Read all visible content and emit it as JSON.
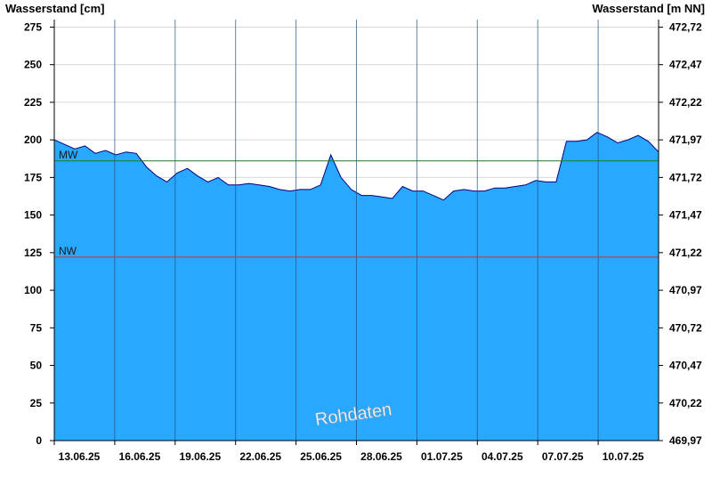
{
  "chart_data": {
    "type": "area",
    "title": "",
    "y_left_label": "Wasserstand [cm]",
    "y_right_label": "Wasserstand [m NN]",
    "y_left_ticks": [
      0,
      25,
      50,
      75,
      100,
      125,
      150,
      175,
      200,
      225,
      250,
      275
    ],
    "y_right_ticks": [
      "469,97",
      "470,22",
      "470,47",
      "470,72",
      "470,97",
      "471,22",
      "471,47",
      "471,72",
      "471,97",
      "472,22",
      "472,47",
      "472,72"
    ],
    "ylim": [
      0,
      280
    ],
    "x_tick_labels": [
      "13.06.25",
      "16.06.25",
      "19.06.25",
      "22.06.25",
      "25.06.25",
      "28.06.25",
      "01.07.25",
      "04.07.25",
      "07.07.25",
      "10.07.25"
    ],
    "x_days": [
      [
        "13.06.25",
        200
      ],
      [
        "13.06.25",
        197
      ],
      [
        "14.06.25",
        194
      ],
      [
        "14.06.25",
        196
      ],
      [
        "15.06.25",
        191
      ],
      [
        "15.06.25",
        193
      ],
      [
        "16.06.25",
        190
      ],
      [
        "16.06.25",
        192
      ],
      [
        "17.06.25",
        191
      ],
      [
        "17.06.25",
        182
      ],
      [
        "18.06.25",
        176
      ],
      [
        "18.06.25",
        172
      ],
      [
        "19.06.25",
        178
      ],
      [
        "19.06.25",
        181
      ],
      [
        "20.06.25",
        176
      ],
      [
        "20.06.25",
        172
      ],
      [
        "21.06.25",
        175
      ],
      [
        "21.06.25",
        170
      ],
      [
        "22.06.25",
        170
      ],
      [
        "22.06.25",
        171
      ],
      [
        "23.06.25",
        170
      ],
      [
        "23.06.25",
        169
      ],
      [
        "24.06.25",
        167
      ],
      [
        "24.06.25",
        166
      ],
      [
        "25.06.25",
        167
      ],
      [
        "25.06.25",
        167
      ],
      [
        "26.06.25",
        170
      ],
      [
        "26.06.25",
        190
      ],
      [
        "27.06.25",
        175
      ],
      [
        "27.06.25",
        167
      ],
      [
        "28.06.25",
        163
      ],
      [
        "28.06.25",
        163
      ],
      [
        "29.06.25",
        162
      ],
      [
        "29.06.25",
        161
      ],
      [
        "30.06.25",
        169
      ],
      [
        "30.06.25",
        166
      ],
      [
        "01.07.25",
        166
      ],
      [
        "01.07.25",
        163
      ],
      [
        "02.07.25",
        160
      ],
      [
        "02.07.25",
        166
      ],
      [
        "03.07.25",
        167
      ],
      [
        "03.07.25",
        166
      ],
      [
        "04.07.25",
        166
      ],
      [
        "04.07.25",
        168
      ],
      [
        "05.07.25",
        168
      ],
      [
        "05.07.25",
        169
      ],
      [
        "06.07.25",
        170
      ],
      [
        "06.07.25",
        173
      ],
      [
        "07.07.25",
        172
      ],
      [
        "07.07.25",
        172
      ],
      [
        "08.07.25",
        199
      ],
      [
        "08.07.25",
        199
      ],
      [
        "09.07.25",
        200
      ],
      [
        "09.07.25",
        205
      ],
      [
        "10.07.25",
        202
      ],
      [
        "10.07.25",
        198
      ],
      [
        "11.07.25",
        200
      ],
      [
        "11.07.25",
        203
      ],
      [
        "12.07.25",
        199
      ],
      [
        "12.07.25",
        192
      ]
    ],
    "series": [
      {
        "name": "",
        "values": [
          200,
          197,
          194,
          196,
          191,
          193,
          190,
          192,
          191,
          182,
          176,
          172,
          178,
          181,
          176,
          172,
          175,
          170,
          170,
          171,
          170,
          169,
          167,
          166,
          167,
          167,
          170,
          190,
          175,
          167,
          163,
          163,
          162,
          161,
          169,
          166,
          166,
          163,
          160,
          166,
          167,
          166,
          166,
          168,
          168,
          169,
          170,
          173,
          172,
          172,
          199,
          199,
          200,
          205,
          202,
          198,
          200,
          203,
          199,
          192
        ]
      }
    ],
    "reference_lines": [
      {
        "label": "MW",
        "value": 186,
        "color": "#1f7a1f"
      },
      {
        "label": "NW",
        "value": 122,
        "color": "#c0392b"
      }
    ],
    "grid": {
      "horizontal": true,
      "vertical": true
    },
    "fill_color": "#29a8ff",
    "line_color": "#000080",
    "watermark": "Rohdaten"
  }
}
